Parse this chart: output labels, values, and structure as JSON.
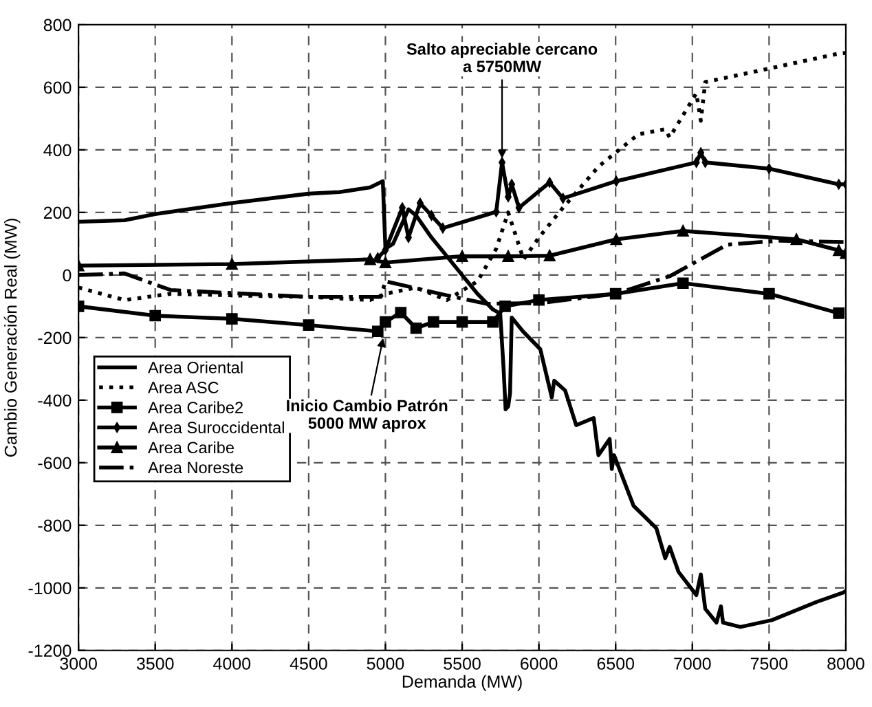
{
  "chart_data": {
    "type": "line",
    "xlabel": "Demanda (MW)",
    "ylabel": "Cambio Generación Real (MW)",
    "xlim": [
      3000,
      8000
    ],
    "xticks": [
      3000,
      3500,
      4000,
      4500,
      5000,
      5500,
      6000,
      6500,
      7000,
      7500,
      8000
    ],
    "ylim": [
      -1200,
      800
    ],
    "yticks": [
      -1200,
      -1000,
      -800,
      -600,
      -400,
      -200,
      0,
      200,
      400,
      600,
      800
    ],
    "grid": true,
    "legend": "left",
    "series": [
      {
        "name": "Area Oriental",
        "color": "#000000",
        "line_style": "solid",
        "marker": "none",
        "x": [
          3000,
          3300,
          3500,
          4000,
          4500,
          4700,
          4900,
          4983,
          5000,
          5050,
          5150,
          5200,
          5300,
          5400,
          5500,
          5600,
          5700,
          5748,
          5770,
          5783,
          5800,
          5812,
          5823,
          5896,
          6009,
          6084,
          6100,
          6171,
          6243,
          6357,
          6388,
          6461,
          6475,
          6490,
          6617,
          6765,
          6823,
          6852,
          6910,
          7026,
          7055,
          7084,
          7157,
          7186,
          7200,
          7313,
          7519,
          7809,
          7983,
          8000
        ],
        "values": [
          170,
          175,
          195,
          230,
          260,
          265,
          280,
          300,
          84,
          100,
          210,
          190,
          120,
          60,
          0,
          -60,
          -110,
          -123,
          -300,
          -429,
          -420,
          -378,
          -136,
          -180,
          -237,
          -391,
          -338,
          -369,
          -480,
          -457,
          -576,
          -524,
          -620,
          -576,
          -738,
          -809,
          -905,
          -869,
          -949,
          -1023,
          -957,
          -1067,
          -1111,
          -1059,
          -1111,
          -1125,
          -1103,
          -1045,
          -1015,
          -1010
        ]
      },
      {
        "name": "Area ASC",
        "color": "#000000",
        "line_style": "dotted",
        "marker": "none",
        "x": [
          3000,
          3300,
          3600,
          4000,
          4500,
          4900,
          5000,
          5200,
          5400,
          5600,
          5722,
          5800,
          5900,
          6000,
          6157,
          6389,
          6649,
          6823,
          6852,
          7026,
          7055,
          7084,
          7500,
          7954,
          8000
        ],
        "values": [
          -40,
          -80,
          -60,
          -65,
          -70,
          -80,
          -60,
          -40,
          -80,
          -20,
          84,
          200,
          50,
          120,
          215,
          347,
          450,
          466,
          440,
          581,
          493,
          617,
          660,
          708,
          710
        ]
      },
      {
        "name": "Area Caribe2",
        "color": "#000000",
        "line_style": "solid",
        "marker": "square",
        "x": [
          3000,
          3500,
          4000,
          4500,
          4950,
          5000,
          5100,
          5200,
          5313,
          5500,
          5700,
          5780,
          6000,
          6500,
          6939,
          7500,
          7954
        ],
        "values": [
          -100,
          -130,
          -140,
          -160,
          -180,
          -150,
          -120,
          -170,
          -150,
          -150,
          -150,
          -100,
          -80,
          -60,
          -26,
          -60,
          -122
        ]
      },
      {
        "name": "Area Suroccidental",
        "color": "#000000",
        "line_style": "solid",
        "marker": "diamond",
        "x": [
          4950,
          5000,
          5110,
          5150,
          5226,
          5300,
          5374,
          5722,
          5760,
          5800,
          5823,
          5870,
          6070,
          6157,
          6504,
          7026,
          7055,
          7084,
          7500,
          7954,
          8000
        ],
        "values": [
          55,
          80,
          215,
          120,
          230,
          190,
          150,
          202,
          360,
          250,
          290,
          215,
          296,
          245,
          300,
          360,
          391,
          360,
          340,
          290,
          290
        ]
      },
      {
        "name": "Area Caribe",
        "color": "#000000",
        "line_style": "solid",
        "marker": "triangle",
        "x": [
          3000,
          4000,
          4900,
          5000,
          5500,
          5800,
          6070,
          6504,
          6939,
          7678,
          7954,
          8000
        ],
        "values": [
          30,
          35,
          50,
          40,
          60,
          60,
          62,
          114,
          141,
          114,
          79,
          70
        ]
      },
      {
        "name": "Area Noreste",
        "color": "#000000",
        "line_style": "dashdot",
        "marker": "none",
        "x": [
          3000,
          3300,
          3600,
          4500,
          4970,
          5000,
          5374,
          5661,
          6000,
          6500,
          6852,
          7226,
          7574,
          8000
        ],
        "values": [
          0,
          5,
          -48,
          -70,
          -70,
          -20,
          -62,
          -92,
          -90,
          -60,
          -4,
          97,
          110,
          105
        ]
      }
    ],
    "annotations": [
      {
        "text": "Salto apreciable cercano\na 5750MW",
        "x": 5760,
        "y": 360
      },
      {
        "text": "Inicio Cambio Patrón\n5000 MW aprox",
        "x": 4990,
        "y": -190
      }
    ]
  }
}
